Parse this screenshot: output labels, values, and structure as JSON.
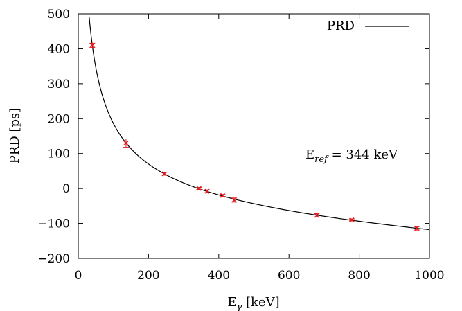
{
  "chart_data": {
    "type": "scatter",
    "xlabel_main": "E",
    "xlabel_sub": "γ",
    "xlabel_unit": " [keV]",
    "ylabel": "PRD [ps]",
    "xlim": [
      0,
      1000
    ],
    "ylim": [
      -200,
      500
    ],
    "x_ticks": [
      0,
      200,
      400,
      600,
      800,
      1000
    ],
    "y_ticks": [
      -200,
      -100,
      0,
      100,
      200,
      300,
      400,
      500
    ],
    "x_tick_labels": [
      "0",
      "200",
      "400",
      "600",
      "800",
      "1000"
    ],
    "y_tick_labels": [
      "−200",
      "−100",
      "0",
      "100",
      "200",
      "300",
      "400",
      "500"
    ],
    "grid": false,
    "legend": {
      "position": "top-right",
      "label": "PRD",
      "line_color": "#000000"
    },
    "annotation": {
      "main": "E",
      "sub": "ref",
      "rest": " = 344 keV"
    },
    "marker_color": "#e41a1c",
    "curve_color": "#000000",
    "points": [
      {
        "x": 40,
        "y": 410,
        "err": 6
      },
      {
        "x": 136,
        "y": 130,
        "err": 12
      },
      {
        "x": 245,
        "y": 42,
        "err": 4
      },
      {
        "x": 344,
        "y": 0,
        "err": 3
      },
      {
        "x": 367,
        "y": -8,
        "err": 4
      },
      {
        "x": 411,
        "y": -20,
        "err": 3
      },
      {
        "x": 444,
        "y": -33,
        "err": 6
      },
      {
        "x": 679,
        "y": -77,
        "err": 5
      },
      {
        "x": 779,
        "y": -90,
        "err": 3
      },
      {
        "x": 964,
        "y": -114,
        "err": 5
      }
    ]
  }
}
